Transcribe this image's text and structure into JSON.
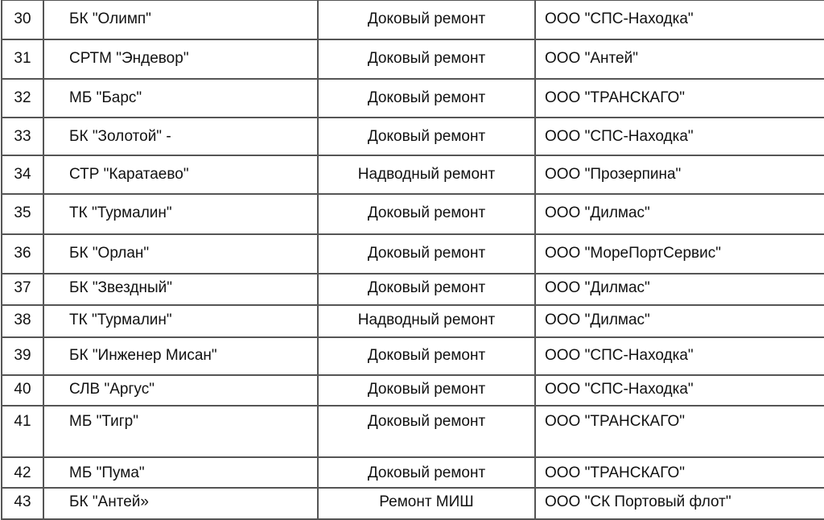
{
  "rows": [
    {
      "num": "30",
      "vessel": "БК \"Олимп\"",
      "work": "Доковый ремонт",
      "contractor": "ООО \"СПС-Находка\""
    },
    {
      "num": "31",
      "vessel": "СРТМ \"Эндевор\"",
      "work": "Доковый ремонт",
      "contractor": "ООО \"Антей\""
    },
    {
      "num": "32",
      "vessel": "МБ \"Барс\"",
      "work": "Доковый ремонт",
      "contractor": "ООО \"ТРАНСКАГО\""
    },
    {
      "num": "33",
      "vessel": "БК \"Золотой\" -",
      "work": "Доковый ремонт",
      "contractor": "ООО \"СПС-Находка\""
    },
    {
      "num": "34",
      "vessel": "СТР \"Каратаево\"",
      "work": "Надводный ремонт",
      "contractor": "ООО \"Прозерпина\""
    },
    {
      "num": "35",
      "vessel": "ТК \"Турмалин\"",
      "work": "Доковый ремонт",
      "contractor": "ООО \"Дилмас\""
    },
    {
      "num": "36",
      "vessel": "БК \"Орлан\"",
      "work": "Доковый ремонт",
      "contractor": "ООО \"МореПортСервис\""
    },
    {
      "num": "37",
      "vessel": "БК \"Звездный\"",
      "work": "Доковый ремонт",
      "contractor": "ООО \"Дилмас\""
    },
    {
      "num": "38",
      "vessel": "ТК \"Турмалин\"",
      "work": "Надводный ремонт",
      "contractor": "ООО \"Дилмас\""
    },
    {
      "num": "39",
      "vessel": "БК \"Инженер Мисан\"",
      "work": "Доковый ремонт",
      "contractor": "ООО \"СПС-Находка\""
    },
    {
      "num": "40",
      "vessel": "СЛВ \"Аргус\"",
      "work": "Доковый ремонт",
      "contractor": "ООО \"СПС-Находка\""
    },
    {
      "num": "41",
      "vessel": "МБ \"Тигр\"",
      "work": "Доковый ремонт",
      "contractor": "ООО \"ТРАНСКАГО\""
    },
    {
      "num": "42",
      "vessel": "МБ \"Пума\"",
      "work": "Доковый ремонт",
      "contractor": "ООО \"ТРАНСКАГО\""
    },
    {
      "num": "43",
      "vessel": "БК \"Антей»",
      "work": "Ремонт МИШ",
      "contractor": "ООО \"СК Портовый флот\""
    }
  ]
}
